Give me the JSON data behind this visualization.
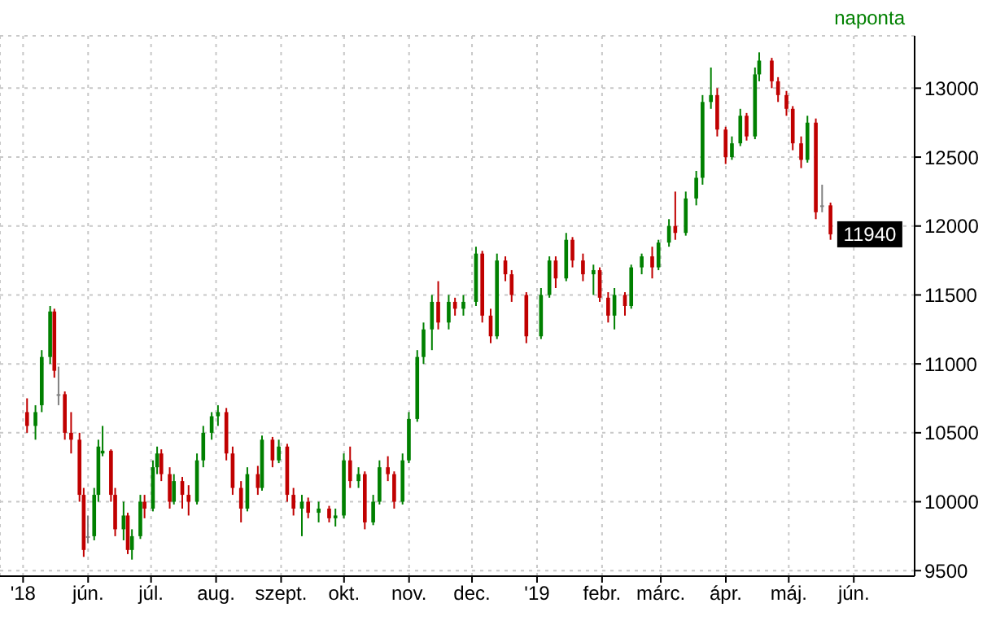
{
  "chart_data": {
    "type": "candlestick",
    "subtitle": "naponta",
    "annotations": [
      {
        "text": "11940",
        "x": "2019-05-21",
        "y": 11940
      }
    ],
    "x": [
      "2018-05-03",
      "2018-05-07",
      "2018-05-10",
      "2018-05-14",
      "2018-05-16",
      "2018-05-18",
      "2018-05-21",
      "2018-05-24",
      "2018-05-28",
      "2018-05-30",
      "2018-06-01",
      "2018-06-04",
      "2018-06-06",
      "2018-06-08",
      "2018-06-12",
      "2018-06-14",
      "2018-06-18",
      "2018-06-20",
      "2018-06-22",
      "2018-06-26",
      "2018-06-28",
      "2018-07-02",
      "2018-07-04",
      "2018-07-06",
      "2018-07-10",
      "2018-07-12",
      "2018-07-16",
      "2018-07-19",
      "2018-07-23",
      "2018-07-26",
      "2018-07-30",
      "2018-08-02",
      "2018-08-06",
      "2018-08-09",
      "2018-08-13",
      "2018-08-16",
      "2018-08-21",
      "2018-08-23",
      "2018-08-28",
      "2018-08-31",
      "2018-09-04",
      "2018-09-07",
      "2018-09-11",
      "2018-09-14",
      "2018-09-19",
      "2018-09-24",
      "2018-09-27",
      "2018-10-01",
      "2018-10-04",
      "2018-10-08",
      "2018-10-11",
      "2018-10-15",
      "2018-10-18",
      "2018-10-22",
      "2018-10-25",
      "2018-10-29",
      "2018-11-01",
      "2018-11-05",
      "2018-11-08",
      "2018-11-12",
      "2018-11-15",
      "2018-11-20",
      "2018-11-23",
      "2018-11-27",
      "2018-12-03",
      "2018-12-06",
      "2018-12-10",
      "2018-12-13",
      "2018-12-17",
      "2018-12-20",
      "2018-12-27",
      "2019-01-03",
      "2019-01-07",
      "2019-01-10",
      "2019-01-15",
      "2019-01-18",
      "2019-01-23",
      "2019-01-28",
      "2019-01-31",
      "2019-02-04",
      "2019-02-07",
      "2019-02-12",
      "2019-02-15",
      "2019-02-20",
      "2019-02-25",
      "2019-02-28",
      "2019-03-05",
      "2019-03-08",
      "2019-03-13",
      "2019-03-18",
      "2019-03-21",
      "2019-03-25",
      "2019-03-28",
      "2019-04-01",
      "2019-04-04",
      "2019-04-08",
      "2019-04-11",
      "2019-04-15",
      "2019-04-17",
      "2019-04-23",
      "2019-04-26",
      "2019-04-30",
      "2019-05-03",
      "2019-05-07",
      "2019-05-10",
      "2019-05-14",
      "2019-05-17",
      "2019-05-21"
    ],
    "ohlc": [
      [
        10650,
        10750,
        10500,
        10550
      ],
      [
        10550,
        10700,
        10450,
        10650
      ],
      [
        10700,
        11100,
        10650,
        11050
      ],
      [
        11050,
        11420,
        11000,
        11380
      ],
      [
        11380,
        11400,
        10900,
        10950
      ],
      [
        10780,
        10980,
        10700,
        10780
      ],
      [
        10780,
        10800,
        10450,
        10500
      ],
      [
        10500,
        10650,
        10350,
        10450
      ],
      [
        10450,
        10500,
        10000,
        10050
      ],
      [
        10050,
        10100,
        9600,
        9650
      ],
      [
        9750,
        9900,
        9700,
        9750
      ],
      [
        9750,
        10100,
        9720,
        10050
      ],
      [
        10050,
        10450,
        10000,
        10400
      ],
      [
        10350,
        10550,
        10330,
        10370
      ],
      [
        10370,
        10380,
        10000,
        10050
      ],
      [
        10050,
        10100,
        9750,
        9800
      ],
      [
        9800,
        10000,
        9720,
        9900
      ],
      [
        9900,
        9920,
        9620,
        9650
      ],
      [
        9650,
        9800,
        9580,
        9750
      ],
      [
        9750,
        10050,
        9730,
        10000
      ],
      [
        10000,
        10050,
        9880,
        9950
      ],
      [
        9950,
        10300,
        9930,
        10250
      ],
      [
        10250,
        10400,
        10200,
        10350
      ],
      [
        10350,
        10380,
        10150,
        10200
      ],
      [
        10200,
        10250,
        9950,
        10000
      ],
      [
        10000,
        10200,
        9980,
        10150
      ],
      [
        10150,
        10180,
        9950,
        10050
      ],
      [
        10050,
        10120,
        9900,
        10000
      ],
      [
        10000,
        10350,
        9980,
        10300
      ],
      [
        10300,
        10550,
        10250,
        10500
      ],
      [
        10500,
        10650,
        10450,
        10620
      ],
      [
        10620,
        10700,
        10550,
        10650
      ],
      [
        10650,
        10680,
        10300,
        10350
      ],
      [
        10350,
        10400,
        10050,
        10100
      ],
      [
        10100,
        10150,
        9850,
        9950
      ],
      [
        9950,
        10250,
        9930,
        10200
      ],
      [
        10200,
        10260,
        10050,
        10100
      ],
      [
        10100,
        10480,
        10080,
        10450
      ],
      [
        10450,
        10470,
        10250,
        10300
      ],
      [
        10300,
        10450,
        10280,
        10400
      ],
      [
        10400,
        10420,
        10000,
        10050
      ],
      [
        10050,
        10100,
        9900,
        9950
      ],
      [
        9950,
        10050,
        9750,
        10000
      ],
      [
        10000,
        10030,
        9880,
        9920
      ],
      [
        9920,
        10000,
        9850,
        9950
      ],
      [
        9950,
        9970,
        9850,
        9880
      ],
      [
        9880,
        9950,
        9820,
        9900
      ],
      [
        9900,
        10350,
        9880,
        10300
      ],
      [
        10300,
        10400,
        10100,
        10150
      ],
      [
        10150,
        10250,
        10100,
        10200
      ],
      [
        10200,
        10220,
        9800,
        9850
      ],
      [
        9850,
        10050,
        9830,
        10000
      ],
      [
        10000,
        10300,
        9980,
        10250
      ],
      [
        10250,
        10330,
        10150,
        10200
      ],
      [
        10200,
        10220,
        9950,
        10000
      ],
      [
        10000,
        10350,
        9980,
        10300
      ],
      [
        10300,
        10650,
        10280,
        10600
      ],
      [
        10600,
        11100,
        10580,
        11050
      ],
      [
        11050,
        11300,
        11000,
        11250
      ],
      [
        11250,
        11500,
        11100,
        11450
      ],
      [
        11450,
        11600,
        11250,
        11300
      ],
      [
        11300,
        11500,
        11250,
        11450
      ],
      [
        11450,
        11480,
        11350,
        11400
      ],
      [
        11400,
        11500,
        11350,
        11450
      ],
      [
        11450,
        11850,
        11420,
        11800
      ],
      [
        11800,
        11820,
        11300,
        11350
      ],
      [
        11350,
        11400,
        11150,
        11200
      ],
      [
        11200,
        11800,
        11180,
        11750
      ],
      [
        11750,
        11780,
        11600,
        11650
      ],
      [
        11650,
        11680,
        11450,
        11500
      ],
      [
        11500,
        11520,
        11150,
        11200
      ],
      [
        11200,
        11550,
        11180,
        11500
      ],
      [
        11500,
        11780,
        11480,
        11750
      ],
      [
        11750,
        11780,
        11550,
        11620
      ],
      [
        11620,
        11950,
        11600,
        11900
      ],
      [
        11900,
        11920,
        11700,
        11750
      ],
      [
        11750,
        11800,
        11600,
        11650
      ],
      [
        11650,
        11720,
        11500,
        11680
      ],
      [
        11680,
        11700,
        11450,
        11480
      ],
      [
        11480,
        11520,
        11300,
        11350
      ],
      [
        11350,
        11550,
        11250,
        11500
      ],
      [
        11500,
        11520,
        11350,
        11420
      ],
      [
        11420,
        11720,
        11400,
        11700
      ],
      [
        11700,
        11800,
        11650,
        11780
      ],
      [
        11780,
        11850,
        11620,
        11700
      ],
      [
        11700,
        11900,
        11680,
        11880
      ],
      [
        11880,
        12050,
        11850,
        12000
      ],
      [
        12000,
        12250,
        11900,
        11950
      ],
      [
        11950,
        12250,
        11930,
        12200
      ],
      [
        12200,
        12400,
        12150,
        12350
      ],
      [
        12350,
        12950,
        12300,
        12900
      ],
      [
        12900,
        13150,
        12850,
        12950
      ],
      [
        12950,
        13000,
        12650,
        12700
      ],
      [
        12700,
        12720,
        12450,
        12500
      ],
      [
        12500,
        12650,
        12480,
        12600
      ],
      [
        12600,
        12850,
        12580,
        12800
      ],
      [
        12800,
        12820,
        12620,
        12650
      ],
      [
        12650,
        13150,
        12630,
        13100
      ],
      [
        13100,
        13260,
        13050,
        13200
      ],
      [
        13200,
        13220,
        13000,
        13050
      ],
      [
        13050,
        13080,
        12900,
        12950
      ],
      [
        12950,
        12980,
        12800,
        12850
      ],
      [
        12850,
        12870,
        12550,
        12600
      ],
      [
        12600,
        12650,
        12420,
        12480
      ],
      [
        12480,
        12800,
        12460,
        12750
      ],
      [
        12750,
        12780,
        12050,
        12100
      ],
      [
        12150,
        12300,
        12100,
        12150
      ],
      [
        12150,
        12170,
        11900,
        11940
      ]
    ],
    "colors": [
      "#c00000",
      "#008000",
      "#008000",
      "#008000",
      "#c00000",
      "#808080",
      "#c00000",
      "#c00000",
      "#c00000",
      "#c00000",
      "#808080",
      "#008000",
      "#008000",
      "#008000",
      "#c00000",
      "#c00000",
      "#008000",
      "#c00000",
      "#008000",
      "#008000",
      "#c00000",
      "#008000",
      "#008000",
      "#c00000",
      "#c00000",
      "#008000",
      "#c00000",
      "#c00000",
      "#008000",
      "#008000",
      "#008000",
      "#008000",
      "#c00000",
      "#c00000",
      "#c00000",
      "#008000",
      "#c00000",
      "#008000",
      "#c00000",
      "#008000",
      "#c00000",
      "#c00000",
      "#008000",
      "#c00000",
      "#008000",
      "#c00000",
      "#008000",
      "#008000",
      "#c00000",
      "#008000",
      "#c00000",
      "#008000",
      "#008000",
      "#c00000",
      "#c00000",
      "#008000",
      "#008000",
      "#008000",
      "#008000",
      "#008000",
      "#c00000",
      "#008000",
      "#c00000",
      "#008000",
      "#008000",
      "#c00000",
      "#c00000",
      "#008000",
      "#c00000",
      "#c00000",
      "#c00000",
      "#008000",
      "#008000",
      "#c00000",
      "#008000",
      "#c00000",
      "#c00000",
      "#008000",
      "#c00000",
      "#c00000",
      "#008000",
      "#c00000",
      "#008000",
      "#008000",
      "#c00000",
      "#008000",
      "#008000",
      "#c00000",
      "#008000",
      "#008000",
      "#008000",
      "#008000",
      "#c00000",
      "#c00000",
      "#008000",
      "#008000",
      "#c00000",
      "#008000",
      "#008000",
      "#c00000",
      "#c00000",
      "#c00000",
      "#c00000",
      "#c00000",
      "#008000",
      "#c00000",
      "#808080",
      "#c00000"
    ],
    "xlim": [
      "2018-04-20",
      "2019-06-30"
    ],
    "xticks": [
      {
        "value": "2018-05-01",
        "label": "'18"
      },
      {
        "value": "2018-06-01",
        "label": "jún."
      },
      {
        "value": "2018-07-01",
        "label": "júl."
      },
      {
        "value": "2018-08-01",
        "label": "aug."
      },
      {
        "value": "2018-09-01",
        "label": "szept."
      },
      {
        "value": "2018-10-01",
        "label": "okt."
      },
      {
        "value": "2018-11-01",
        "label": "nov."
      },
      {
        "value": "2018-12-01",
        "label": "dec."
      },
      {
        "value": "2019-01-01",
        "label": "'19"
      },
      {
        "value": "2019-02-01",
        "label": "febr."
      },
      {
        "value": "2019-03-01",
        "label": "márc."
      },
      {
        "value": "2019-04-01",
        "label": "ápr."
      },
      {
        "value": "2019-05-01",
        "label": "máj."
      },
      {
        "value": "2019-06-01",
        "label": "jún."
      }
    ],
    "ylim": [
      9460,
      13380
    ],
    "yticks": [
      9500,
      10000,
      10500,
      11000,
      11500,
      12000,
      12500,
      13000
    ],
    "grid": true
  }
}
